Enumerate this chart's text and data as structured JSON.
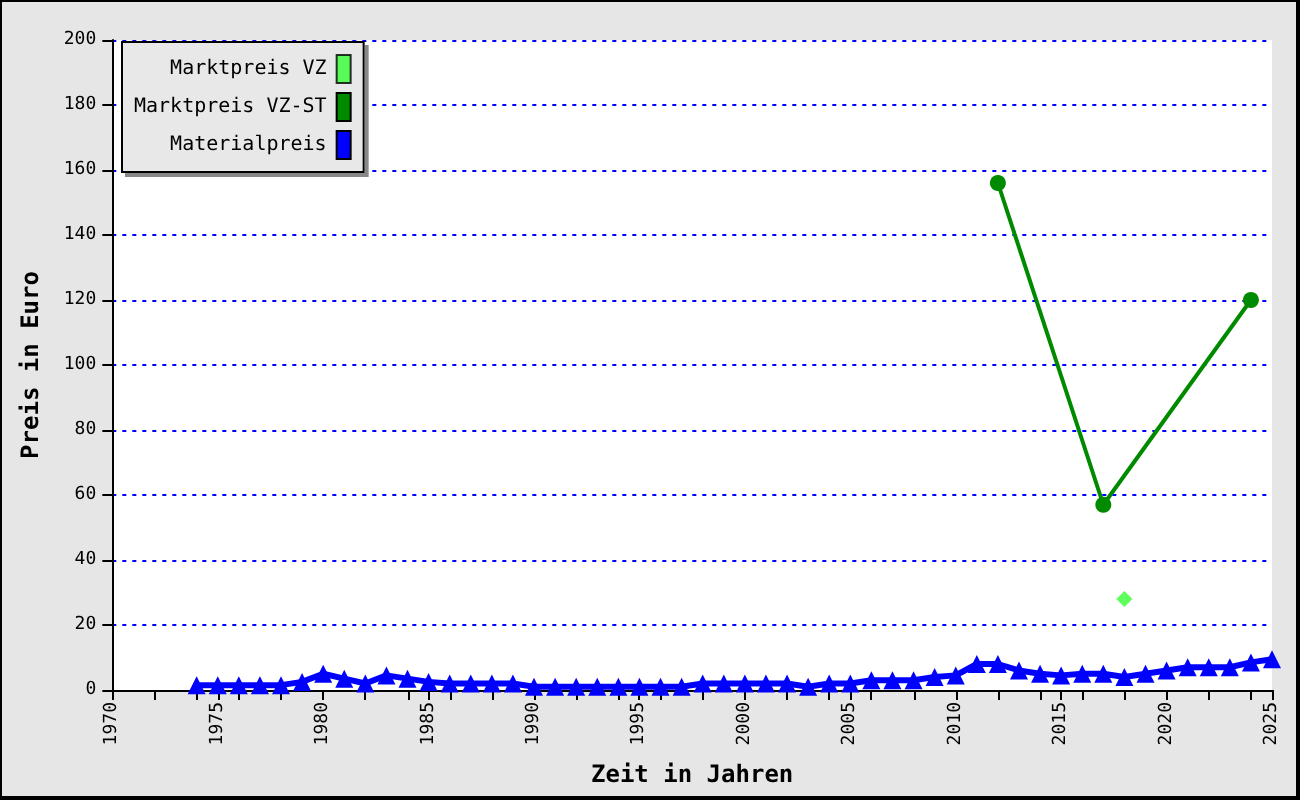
{
  "chart_data": {
    "type": "line",
    "xlabel": "Zeit in Jahren",
    "ylabel": "Preis in Euro",
    "xlim": [
      1970,
      2025
    ],
    "ylim": [
      0,
      200
    ],
    "xticks": [
      1970,
      {
        "value": 1972,
        "label": null
      },
      {
        "value": 1974,
        "label": null
      },
      1975,
      {
        "value": 1976,
        "label": null
      },
      {
        "value": 1978,
        "label": null
      },
      1980,
      {
        "value": 1982,
        "label": null
      },
      {
        "value": 1984,
        "label": null
      },
      1985,
      {
        "value": 1986,
        "label": null
      },
      {
        "value": 1988,
        "label": null
      },
      1990,
      {
        "value": 1992,
        "label": null
      },
      {
        "value": 1994,
        "label": null
      },
      1995,
      {
        "value": 1996,
        "label": null
      },
      {
        "value": 1998,
        "label": null
      },
      2000,
      {
        "value": 2002,
        "label": null
      },
      {
        "value": 2004,
        "label": null
      },
      2005,
      {
        "value": 2006,
        "label": null
      },
      {
        "value": 2008,
        "label": null
      },
      2010,
      {
        "value": 2012,
        "label": null
      },
      {
        "value": 2014,
        "label": null
      },
      2015,
      {
        "value": 2016,
        "label": null
      },
      {
        "value": 2018,
        "label": null
      },
      2020,
      {
        "value": 2022,
        "label": null
      },
      {
        "value": 2024,
        "label": null
      },
      2025
    ],
    "yticks": [
      0,
      20,
      40,
      60,
      80,
      100,
      120,
      140,
      160,
      180,
      200
    ],
    "grid": "y",
    "legend": "top left",
    "series": [
      {
        "name": "Marktpreis VZ",
        "type": "scatter",
        "marker": "diamond",
        "color": "#33ff33",
        "x": [
          2018
        ],
        "values": [
          28
        ]
      },
      {
        "name": "Marktpreis VZ-ST",
        "marker": "circle",
        "color": "#008a00",
        "x": [
          2012,
          2017,
          2024
        ],
        "values": [
          156,
          57,
          120
        ]
      },
      {
        "name": "Materialpreis",
        "marker": "triangle",
        "color": "#0000ff",
        "x": [
          1974,
          1975,
          1976,
          1977,
          1978,
          1979,
          1980,
          1981,
          1982,
          1983,
          1984,
          1985,
          1986,
          1987,
          1988,
          1989,
          1990,
          1991,
          1992,
          1993,
          1994,
          1995,
          1996,
          1997,
          1998,
          1999,
          2000,
          2001,
          2002,
          2003,
          2004,
          2005,
          2006,
          2007,
          2008,
          2009,
          2010,
          2011,
          2012,
          2013,
          2014,
          2015,
          2016,
          2017,
          2018,
          2019,
          2020,
          2021,
          2022,
          2023,
          2024,
          2025
        ],
        "values": [
          1.5,
          1.5,
          1.5,
          1.5,
          1.5,
          2.5,
          5,
          3.5,
          2,
          4.5,
          3.5,
          2.5,
          2,
          2,
          2,
          2,
          1,
          1,
          1,
          1,
          1,
          1,
          1,
          1,
          2,
          2,
          2,
          2,
          2,
          1,
          2,
          2,
          3,
          3,
          3,
          4,
          4.5,
          8,
          8,
          6,
          5,
          4.5,
          5,
          5,
          4,
          5,
          6,
          7,
          7,
          7,
          8.5,
          9.5
        ]
      }
    ]
  }
}
